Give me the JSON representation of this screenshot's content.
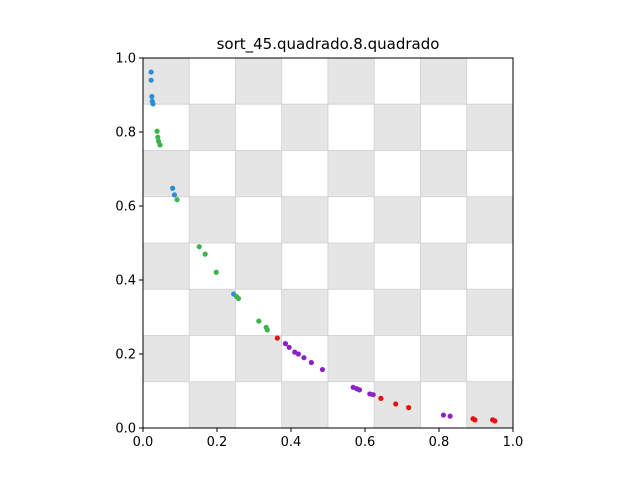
{
  "chart_data": {
    "type": "scatter",
    "title": "sort_45.quadrado.8.quadrado",
    "xlabel": "",
    "ylabel": "",
    "xlim": [
      0.0,
      1.0
    ],
    "ylim": [
      0.0,
      1.0
    ],
    "xticks": [
      "0.0",
      "0.2",
      "0.4",
      "0.6",
      "0.8",
      "1.0"
    ],
    "yticks": [
      "0.0",
      "0.2",
      "0.4",
      "0.6",
      "0.8",
      "1.0"
    ],
    "background": {
      "pattern": "checkerboard",
      "divisions": 8,
      "colors": [
        "#e5e5e5",
        "#ffffff"
      ],
      "cell_edge_color": "#d3d3d3"
    },
    "series": [
      {
        "color": "#2b8fd8",
        "points": [
          [
            0.022,
            0.962
          ],
          [
            0.022,
            0.94
          ],
          [
            0.024,
            0.896
          ],
          [
            0.025,
            0.883
          ],
          [
            0.027,
            0.876
          ],
          [
            0.08,
            0.648
          ],
          [
            0.085,
            0.63
          ],
          [
            0.245,
            0.362
          ]
        ]
      },
      {
        "color": "#3cb44b",
        "points": [
          [
            0.038,
            0.802
          ],
          [
            0.04,
            0.786
          ],
          [
            0.042,
            0.775
          ],
          [
            0.046,
            0.765
          ],
          [
            0.092,
            0.617
          ],
          [
            0.152,
            0.49
          ],
          [
            0.168,
            0.47
          ],
          [
            0.198,
            0.421
          ],
          [
            0.253,
            0.355
          ],
          [
            0.258,
            0.35
          ],
          [
            0.313,
            0.289
          ],
          [
            0.333,
            0.272
          ],
          [
            0.336,
            0.265
          ]
        ]
      },
      {
        "color": "#e8100c",
        "points": [
          [
            0.363,
            0.243
          ],
          [
            0.643,
            0.08
          ],
          [
            0.683,
            0.065
          ],
          [
            0.718,
            0.055
          ],
          [
            0.892,
            0.025
          ],
          [
            0.897,
            0.022
          ],
          [
            0.945,
            0.022
          ],
          [
            0.951,
            0.019
          ]
        ]
      },
      {
        "color": "#8a22c4",
        "points": [
          [
            0.385,
            0.228
          ],
          [
            0.395,
            0.218
          ],
          [
            0.41,
            0.205
          ],
          [
            0.42,
            0.2
          ],
          [
            0.435,
            0.19
          ],
          [
            0.455,
            0.177
          ],
          [
            0.485,
            0.158
          ],
          [
            0.568,
            0.11
          ],
          [
            0.578,
            0.106
          ],
          [
            0.585,
            0.103
          ],
          [
            0.613,
            0.092
          ],
          [
            0.622,
            0.09
          ],
          [
            0.812,
            0.035
          ],
          [
            0.83,
            0.032
          ]
        ]
      }
    ]
  }
}
